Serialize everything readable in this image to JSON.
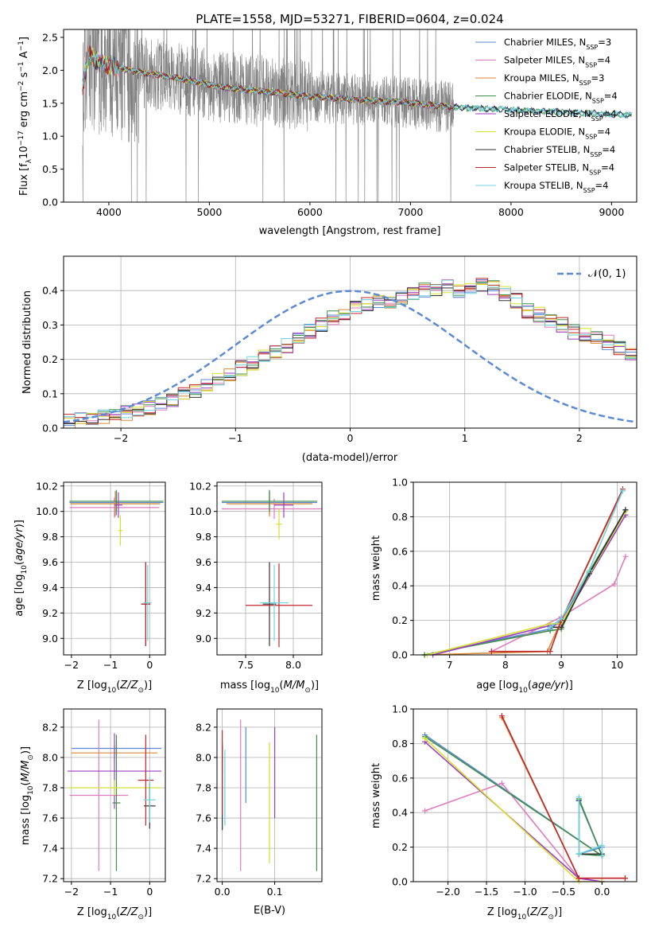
{
  "chart_data": [
    {
      "type": "line",
      "title": "PLATE=1558, MJD=53271, FIBERID=0604, z=0.024",
      "xlabel": "wavelength [Angstrom, rest frame]",
      "ylabel": "Flux [f$_\\lambda$10$^{-17}$ erg cm$^{-2}$ s$^{-1}$ A$^{-1}$]",
      "ylabel_parts": [
        "Flux [f",
        "λ",
        "10",
        "−17",
        " erg cm",
        "−2",
        " s",
        "−1",
        " A",
        "−1",
        "]"
      ],
      "xlim": [
        3550,
        9250
      ],
      "ylim": [
        0,
        2.62
      ],
      "xticks": [
        4000,
        5000,
        6000,
        7000,
        8000,
        9000
      ],
      "yticks": [
        0.0,
        0.5,
        1.0,
        1.5,
        2.0,
        2.5
      ],
      "data_color": "#808080",
      "data_range": [
        3740,
        7430
      ],
      "legend_loc": "upper right",
      "series": [
        {
          "name": "Chabrier MILES",
          "nssp": "3",
          "color": "#5b87d6"
        },
        {
          "name": "Salpeter MILES",
          "nssp": "4",
          "color": "#e07bbf"
        },
        {
          "name": "Kroupa MILES",
          "nssp": "3",
          "color": "#d88a36"
        },
        {
          "name": "Chabrier ELODIE",
          "nssp": "4",
          "color": "#3f8f4a"
        },
        {
          "name": "Salpeter ELODIE",
          "nssp": "4",
          "color": "#9b3fc0"
        },
        {
          "name": "Kroupa ELODIE",
          "nssp": "4",
          "color": "#d8e02c"
        },
        {
          "name": "Chabrier STELIB",
          "nssp": "4",
          "color": "#333333"
        },
        {
          "name": "Salpeter STELIB",
          "nssp": "4",
          "color": "#c0272d"
        },
        {
          "name": "Kroupa STELIB",
          "nssp": "4",
          "color": "#6fd3dd"
        }
      ],
      "continuum": {
        "x": [
          3740,
          3800,
          3900,
          4000,
          4200,
          4500,
          4800,
          5100,
          5400,
          5700,
          6000,
          6300,
          6600,
          6900,
          7200,
          7430,
          7700,
          8000,
          8300,
          8600,
          8900,
          9200
        ],
        "y": [
          1.75,
          2.25,
          2.12,
          2.08,
          2.0,
          1.93,
          1.85,
          1.75,
          1.7,
          1.66,
          1.6,
          1.57,
          1.54,
          1.52,
          1.47,
          1.44,
          1.42,
          1.4,
          1.38,
          1.36,
          1.34,
          1.32
        ]
      }
    },
    {
      "type": "step",
      "xlabel": "(data-model)/error",
      "ylabel": "Normed distribution",
      "xlim": [
        -2.5,
        2.5
      ],
      "ylim": [
        0,
        0.5
      ],
      "xticks": [
        -2,
        -1,
        0,
        1,
        2
      ],
      "yticks": [
        0.0,
        0.1,
        0.2,
        0.3,
        0.4
      ],
      "gaussian_label": "𝒩(0, 1)",
      "gaussian_color": "#5b8bd5",
      "bin_width": 0.1,
      "bin_start": -2.5,
      "base": [
        0.018,
        0.022,
        0.026,
        0.034,
        0.04,
        0.045,
        0.052,
        0.06,
        0.07,
        0.08,
        0.095,
        0.11,
        0.125,
        0.14,
        0.155,
        0.175,
        0.19,
        0.205,
        0.22,
        0.24,
        0.26,
        0.28,
        0.3,
        0.32,
        0.335,
        0.35,
        0.36,
        0.37,
        0.36,
        0.38,
        0.395,
        0.4,
        0.405,
        0.41,
        0.4,
        0.41,
        0.42,
        0.41,
        0.39,
        0.37,
        0.34,
        0.33,
        0.31,
        0.3,
        0.28,
        0.27,
        0.26,
        0.25,
        0.23,
        0.21,
        0.2,
        0.17,
        0.15,
        0.14,
        0.12,
        0.11,
        0.1,
        0.085,
        0.075,
        0.065,
        0.058,
        0.05,
        0.044,
        0.04,
        0.036,
        0.034,
        0.031,
        0.029,
        0.026,
        0.024,
        0.022,
        0.02,
        0.018,
        0.016,
        0.015,
        0.014,
        0.013,
        0.012,
        0.011,
        0.01,
        0.01,
        0.01,
        0.009,
        0.009,
        0.008,
        0.008,
        0.007,
        0.007,
        0.006,
        0.006,
        0.005,
        0.005,
        0.005,
        0.004,
        0.004,
        0.004,
        0.003,
        0.003,
        0.003,
        0.003
      ]
    },
    {
      "type": "errorbar",
      "xlabel": "Z [log10(Z/Z⊙)]",
      "ylabel": "age [log10(age/yr)]",
      "xlim": [
        -2.2,
        0.4
      ],
      "ylim": [
        8.87,
        10.23
      ],
      "xticks": [
        -2,
        -1,
        0
      ],
      "yticks": [
        9.0,
        9.2,
        9.4,
        9.6,
        9.8,
        10.0,
        10.2
      ],
      "points": [
        {
          "x": -0.85,
          "y": 10.07,
          "xerr": 1.2,
          "yerr": 0.1,
          "color": "#5b87d6"
        },
        {
          "x": -0.9,
          "y": 10.03,
          "xerr": 1.15,
          "yerr": 0.08,
          "color": "#e07bbf"
        },
        {
          "x": -0.88,
          "y": 10.06,
          "xerr": 1.15,
          "yerr": 0.1,
          "color": "#d88a36"
        },
        {
          "x": -0.85,
          "y": 10.08,
          "xerr": 1.2,
          "yerr": 0.08,
          "color": "#3f8f4a"
        },
        {
          "x": -0.8,
          "y": 10.05,
          "xerr": 0.1,
          "yerr": 0.1,
          "color": "#9b3fc0"
        },
        {
          "x": -0.75,
          "y": 9.85,
          "xerr": 0.05,
          "yerr": 0.12,
          "color": "#d8e02c"
        },
        {
          "x": -0.1,
          "y": 9.27,
          "xerr": 0.1,
          "yerr": 0.33,
          "color": "#333333"
        },
        {
          "x": -0.1,
          "y": 9.27,
          "xerr": 0.12,
          "yerr": 0.33,
          "color": "#c0272d"
        },
        {
          "x": -0.05,
          "y": 9.28,
          "xerr": 0.1,
          "yerr": 0.3,
          "color": "#6fd3dd"
        }
      ]
    },
    {
      "type": "errorbar",
      "xlabel": "mass [log10(M/M⊙)]",
      "xlim": [
        7.2,
        8.3
      ],
      "ylim": [
        8.87,
        10.23
      ],
      "xticks": [
        7.5,
        8.0
      ],
      "yticks": [
        9.0,
        9.2,
        9.4,
        9.6,
        9.8,
        10.0,
        10.2
      ],
      "points": [
        {
          "x": 7.75,
          "y": 10.07,
          "xerr": 0.5,
          "yerr": 0.1,
          "color": "#5b87d6"
        },
        {
          "x": 7.8,
          "y": 10.02,
          "xerr": 0.55,
          "yerr": 0.08,
          "color": "#e07bbf"
        },
        {
          "x": 7.75,
          "y": 10.06,
          "xerr": 0.45,
          "yerr": 0.1,
          "color": "#d88a36"
        },
        {
          "x": 7.75,
          "y": 10.08,
          "xerr": 0.5,
          "yerr": 0.08,
          "color": "#3f8f4a"
        },
        {
          "x": 7.9,
          "y": 10.05,
          "xerr": 0.1,
          "yerr": 0.1,
          "color": "#9b3fc0"
        },
        {
          "x": 7.85,
          "y": 9.9,
          "xerr": 0.03,
          "yerr": 0.12,
          "color": "#d8e02c"
        },
        {
          "x": 7.75,
          "y": 9.27,
          "xerr": 0.07,
          "yerr": 0.33,
          "color": "#333333"
        },
        {
          "x": 7.85,
          "y": 9.26,
          "xerr": 0.35,
          "yerr": 0.33,
          "color": "#c0272d"
        },
        {
          "x": 7.8,
          "y": 9.28,
          "xerr": 0.15,
          "yerr": 0.3,
          "color": "#6fd3dd"
        }
      ]
    },
    {
      "type": "line",
      "xlabel": "age [log10(age/yr)]",
      "ylabel": "mass weight",
      "xlim": [
        6.35,
        10.35
      ],
      "ylim": [
        0,
        1
      ],
      "xticks": [
        7,
        8,
        9,
        10
      ],
      "yticks": [
        0.0,
        0.2,
        0.4,
        0.6,
        0.8,
        1.0
      ],
      "series": [
        {
          "color": "#5b87d6",
          "x": [
            6.55,
            8.8,
            9.0,
            9.5,
            10.15
          ],
          "y": [
            0.0,
            0.15,
            0.2,
            0.47,
            0.84
          ]
        },
        {
          "color": "#e07bbf",
          "x": [
            7.75,
            9.0,
            9.95,
            10.15
          ],
          "y": [
            0.02,
            0.22,
            0.41,
            0.57
          ]
        },
        {
          "color": "#d88a36",
          "x": [
            6.55,
            8.75,
            9.0,
            10.1
          ],
          "y": [
            0.0,
            0.02,
            0.2,
            0.95
          ]
        },
        {
          "color": "#3f8f4a",
          "x": [
            6.55,
            8.8,
            9.0,
            9.5,
            10.15
          ],
          "y": [
            0.0,
            0.14,
            0.15,
            0.48,
            0.84
          ]
        },
        {
          "color": "#9b3fc0",
          "x": [
            6.7,
            8.8,
            9.0,
            10.15
          ],
          "y": [
            0.0,
            0.17,
            0.18,
            0.81
          ]
        },
        {
          "color": "#d8e02c",
          "x": [
            6.6,
            8.8,
            9.0,
            10.15
          ],
          "y": [
            0.0,
            0.18,
            0.18,
            0.83
          ]
        },
        {
          "color": "#333333",
          "x": [
            8.8,
            9.0,
            9.5,
            10.15
          ],
          "y": [
            0.16,
            0.16,
            0.47,
            0.84
          ]
        },
        {
          "color": "#c0272d",
          "x": [
            7.75,
            8.8,
            9.0,
            10.1
          ],
          "y": [
            0.02,
            0.02,
            0.2,
            0.96
          ]
        },
        {
          "color": "#6fd3dd",
          "x": [
            8.8,
            9.0,
            9.5,
            10.1
          ],
          "y": [
            0.16,
            0.21,
            0.49,
            0.95
          ]
        }
      ]
    },
    {
      "type": "errorbar",
      "xlabel": "Z [log10(Z/Z⊙)]",
      "ylabel": "mass [log10(M/M⊙)]",
      "xlim": [
        -2.2,
        0.4
      ],
      "ylim": [
        7.18,
        8.32
      ],
      "xticks": [
        -2,
        -1,
        0
      ],
      "yticks": [
        7.2,
        7.4,
        7.6,
        7.8,
        8.0,
        8.2
      ],
      "points": [
        {
          "x": -0.85,
          "y": 8.06,
          "xerr": 1.15,
          "yerr": 0.05,
          "color": "#5b87d6"
        },
        {
          "x": -1.3,
          "y": 7.75,
          "xerr": 0.75,
          "yerr": 0.5,
          "color": "#e07bbf"
        },
        {
          "x": -0.9,
          "y": 8.03,
          "xerr": 1.1,
          "yerr": 0.05,
          "color": "#d88a36"
        },
        {
          "x": -0.85,
          "y": 7.7,
          "xerr": 0.1,
          "yerr": 0.45,
          "color": "#3f8f4a"
        },
        {
          "x": -0.9,
          "y": 7.91,
          "xerr": 1.2,
          "yerr": 0.25,
          "color": "#9b3fc0"
        },
        {
          "x": -0.9,
          "y": 7.8,
          "xerr": 1.2,
          "yerr": 0.05,
          "color": "#d8e02c"
        },
        {
          "x": 0.0,
          "y": 7.68,
          "xerr": 0.15,
          "yerr": 0.15,
          "color": "#333333"
        },
        {
          "x": -0.1,
          "y": 7.85,
          "xerr": 0.2,
          "yerr": 0.3,
          "color": "#c0272d"
        },
        {
          "x": 0.0,
          "y": 7.72,
          "xerr": 0.15,
          "yerr": 0.15,
          "color": "#6fd3dd"
        }
      ]
    },
    {
      "type": "errorbar",
      "xlabel": "E(B-V)",
      "xlim": [
        -0.01,
        0.19
      ],
      "ylim": [
        7.18,
        8.32
      ],
      "xticks": [
        0.0,
        0.1
      ],
      "yticks": [
        7.2,
        7.4,
        7.6,
        7.8,
        8.0,
        8.2
      ],
      "points": [
        {
          "x": 0.045,
          "y": 7.95,
          "xerr": 0,
          "yerr": 0.25,
          "color": "#5b87d6"
        },
        {
          "x": 0.035,
          "y": 7.75,
          "xerr": 0,
          "yerr": 0.5,
          "color": "#e07bbf"
        },
        {
          "x": 0.0,
          "y": 8.0,
          "xerr": 0,
          "yerr": 0.1,
          "color": "#d88a36"
        },
        {
          "x": 0.18,
          "y": 7.7,
          "xerr": 0,
          "yerr": 0.45,
          "color": "#3f8f4a"
        },
        {
          "x": 0.1,
          "y": 7.9,
          "xerr": 0,
          "yerr": 0.3,
          "color": "#9b3fc0"
        },
        {
          "x": 0.09,
          "y": 7.7,
          "xerr": 0,
          "yerr": 0.4,
          "color": "#d8e02c"
        },
        {
          "x": 0.0,
          "y": 7.8,
          "xerr": 0,
          "yerr": 0.28,
          "color": "#333333"
        },
        {
          "x": 0.0,
          "y": 7.9,
          "xerr": 0,
          "yerr": 0.28,
          "color": "#c0272d"
        },
        {
          "x": 0.005,
          "y": 7.8,
          "xerr": 0,
          "yerr": 0.25,
          "color": "#6fd3dd"
        }
      ]
    },
    {
      "type": "line",
      "xlabel": "Z [log10(Z/Z⊙)]",
      "ylabel": "mass weight",
      "xlim": [
        -2.45,
        0.45
      ],
      "ylim": [
        0,
        1
      ],
      "xticks": [
        -2.0,
        -1.5,
        -1.0,
        -0.5,
        0.0
      ],
      "yticks": [
        0.0,
        0.2,
        0.4,
        0.6,
        0.8,
        1.0
      ],
      "series": [
        {
          "color": "#5b87d6",
          "x": [
            -2.3,
            0.0,
            -0.3,
            -0.3,
            0.0
          ],
          "y": [
            0.85,
            0.15,
            0.47,
            0.16,
            0.2
          ]
        },
        {
          "color": "#e07bbf",
          "x": [
            -2.3,
            -1.3,
            -0.3,
            0.0
          ],
          "y": [
            0.41,
            0.57,
            0.02,
            0.0
          ]
        },
        {
          "color": "#d88a36",
          "x": [
            -1.3,
            -0.3,
            0.3
          ],
          "y": [
            0.95,
            0.02,
            0.02
          ]
        },
        {
          "color": "#3f8f4a",
          "x": [
            -2.3,
            0.0,
            -0.3,
            -0.3,
            0.0
          ],
          "y": [
            0.84,
            0.15,
            0.48,
            0.16,
            0.15
          ]
        },
        {
          "color": "#9b3fc0",
          "x": [
            -2.3,
            -0.3,
            0.0
          ],
          "y": [
            0.81,
            0.02,
            0.0
          ]
        },
        {
          "color": "#d8e02c",
          "x": [
            -2.3,
            -0.3,
            0.0
          ],
          "y": [
            0.83,
            0.0,
            0.0
          ]
        },
        {
          "color": "#333333",
          "x": [
            -0.3,
            -0.3,
            0.0
          ],
          "y": [
            0.47,
            0.16,
            0.16
          ]
        },
        {
          "color": "#c0272d",
          "x": [
            -1.3,
            -0.3,
            0.3
          ],
          "y": [
            0.96,
            0.02,
            0.02
          ]
        },
        {
          "color": "#6fd3dd",
          "x": [
            -0.3,
            -0.3,
            0.0,
            0.0
          ],
          "y": [
            0.49,
            0.16,
            0.21,
            0.15
          ]
        }
      ]
    }
  ]
}
